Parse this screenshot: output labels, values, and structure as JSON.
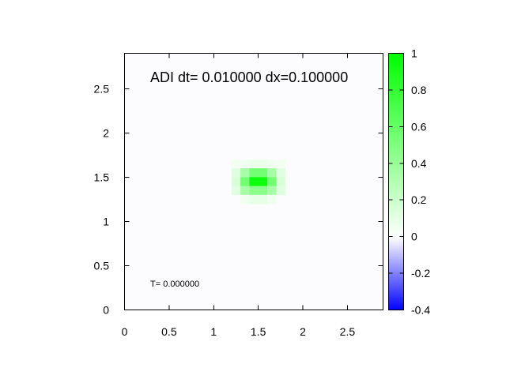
{
  "chart_data": {
    "type": "heatmap",
    "title": "ADI dt= 0.010000 dx=0.100000",
    "annotation": "T= 0.000000",
    "xlim": [
      0,
      2.9
    ],
    "ylim": [
      0,
      2.9
    ],
    "xticks": [
      "0",
      "0.5",
      "1",
      "1.5",
      "2",
      "2.5"
    ],
    "yticks": [
      "0",
      "0.5",
      "1",
      "1.5",
      "2",
      "2.5"
    ],
    "cell_size": 0.1,
    "background_value": 0,
    "cells": [
      {
        "x": 1.25,
        "y": 1.65,
        "v": 0.05
      },
      {
        "x": 1.35,
        "y": 1.65,
        "v": 0.06
      },
      {
        "x": 1.45,
        "y": 1.65,
        "v": 0.08
      },
      {
        "x": 1.55,
        "y": 1.65,
        "v": 0.08
      },
      {
        "x": 1.65,
        "y": 1.65,
        "v": 0.06
      },
      {
        "x": 1.75,
        "y": 1.65,
        "v": 0.05
      },
      {
        "x": 1.25,
        "y": 1.55,
        "v": 0.12
      },
      {
        "x": 1.35,
        "y": 1.55,
        "v": 0.35
      },
      {
        "x": 1.45,
        "y": 1.55,
        "v": 0.55
      },
      {
        "x": 1.55,
        "y": 1.55,
        "v": 0.55
      },
      {
        "x": 1.65,
        "y": 1.55,
        "v": 0.35
      },
      {
        "x": 1.75,
        "y": 1.55,
        "v": 0.12
      },
      {
        "x": 1.25,
        "y": 1.45,
        "v": 0.15
      },
      {
        "x": 1.35,
        "y": 1.45,
        "v": 0.55
      },
      {
        "x": 1.45,
        "y": 1.45,
        "v": 0.95
      },
      {
        "x": 1.55,
        "y": 1.45,
        "v": 0.95
      },
      {
        "x": 1.65,
        "y": 1.45,
        "v": 0.55
      },
      {
        "x": 1.75,
        "y": 1.45,
        "v": 0.15
      },
      {
        "x": 1.25,
        "y": 1.35,
        "v": 0.12
      },
      {
        "x": 1.35,
        "y": 1.35,
        "v": 0.35
      },
      {
        "x": 1.45,
        "y": 1.35,
        "v": 0.45
      },
      {
        "x": 1.55,
        "y": 1.35,
        "v": 0.45
      },
      {
        "x": 1.65,
        "y": 1.35,
        "v": 0.35
      },
      {
        "x": 1.75,
        "y": 1.35,
        "v": 0.12
      },
      {
        "x": 1.35,
        "y": 1.25,
        "v": 0.06
      },
      {
        "x": 1.45,
        "y": 1.25,
        "v": 0.1
      },
      {
        "x": 1.55,
        "y": 1.25,
        "v": 0.1
      },
      {
        "x": 1.65,
        "y": 1.25,
        "v": 0.06
      }
    ],
    "colorbar": {
      "range": [
        -0.4,
        1
      ],
      "ticks": [
        "1",
        "0.8",
        "0.6",
        "0.4",
        "0.2",
        "0",
        "-0.2",
        "-0.4"
      ],
      "color_low": "#0000ff",
      "color_mid": "#ffffff",
      "color_high": "#00ff00"
    }
  }
}
